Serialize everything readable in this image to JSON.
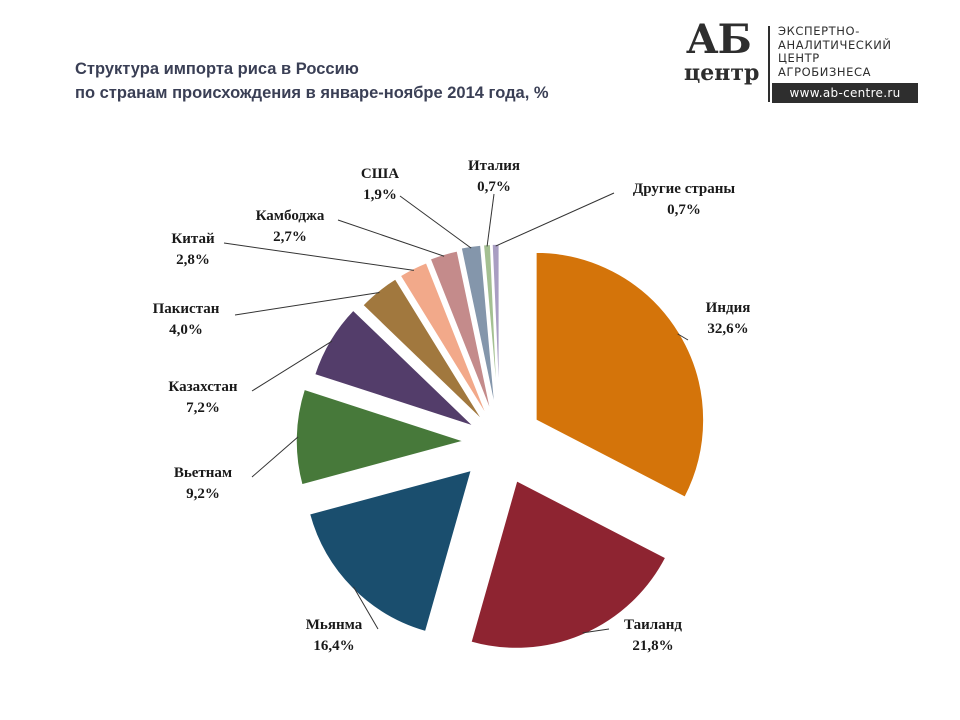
{
  "header": {
    "title_line1": "Структура импорта  риса в Россию",
    "title_line2": "по странам происхождения в январе-ноябре 2014 года, %"
  },
  "logo": {
    "mark_top": "АБ",
    "mark_bottom": "центр",
    "line1": "ЭКСПЕРТНО-",
    "line2": "АНАЛИТИЧЕСКИЙ",
    "line3": "ЦЕНТР",
    "line4": "АГРОБИЗНЕСА",
    "url": "www.ab-centre.ru"
  },
  "chart_data": {
    "type": "pie",
    "exploded": true,
    "slices": [
      {
        "name": "Индия",
        "value": 32.6,
        "label": "32,6%",
        "color": "#D4740A"
      },
      {
        "name": "Таиланд",
        "value": 21.8,
        "label": "21,8%",
        "color": "#8E2431"
      },
      {
        "name": "Мьянма",
        "value": 16.4,
        "label": "16,4%",
        "color": "#1A4E6E"
      },
      {
        "name": "Вьетнам",
        "value": 9.2,
        "label": "9,2%",
        "color": "#47793A"
      },
      {
        "name": "Казахстан",
        "value": 7.2,
        "label": "7,2%",
        "color": "#533D6A"
      },
      {
        "name": "Пакистан",
        "value": 4.0,
        "label": "4,0%",
        "color": "#A1783E"
      },
      {
        "name": "Китай",
        "value": 2.8,
        "label": "2,8%",
        "color": "#F2A98A"
      },
      {
        "name": "Камбоджа",
        "value": 2.7,
        "label": "2,7%",
        "color": "#C48B8B"
      },
      {
        "name": "США",
        "value": 1.9,
        "label": "1,9%",
        "color": "#8496AB"
      },
      {
        "name": "Италия",
        "value": 0.7,
        "label": "0,7%",
        "color": "#A4C092"
      },
      {
        "name": "Другие страны",
        "value": 0.7,
        "label": "0,7%",
        "color": "#A99EC2"
      }
    ]
  }
}
